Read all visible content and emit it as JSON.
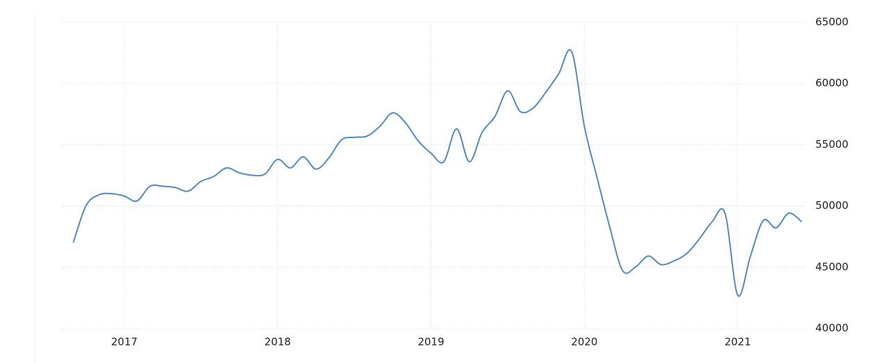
{
  "chart_data": {
    "type": "line",
    "x": [
      2016.667,
      2016.75,
      2016.833,
      2016.917,
      2017,
      2017.083,
      2017.167,
      2017.25,
      2017.333,
      2017.417,
      2017.5,
      2017.583,
      2017.667,
      2017.75,
      2017.833,
      2017.917,
      2018,
      2018.083,
      2018.167,
      2018.25,
      2018.333,
      2018.417,
      2018.5,
      2018.583,
      2018.667,
      2018.75,
      2018.833,
      2018.917,
      2019,
      2019.083,
      2019.167,
      2019.25,
      2019.333,
      2019.417,
      2019.5,
      2019.583,
      2019.667,
      2019.75,
      2019.833,
      2019.917,
      2020,
      2020.083,
      2020.167,
      2020.25,
      2020.333,
      2020.417,
      2020.5,
      2020.583,
      2020.667,
      2020.75,
      2020.833,
      2020.917,
      2021,
      2021.083,
      2021.167,
      2021.25,
      2021.333,
      2021.417
    ],
    "series": [
      {
        "color": "#4f8ac0",
        "values": [
          47000,
          50000,
          50900,
          51000,
          50800,
          50400,
          51600,
          51600,
          51500,
          51200,
          52000,
          52400,
          53100,
          52700,
          52500,
          52600,
          53800,
          53100,
          54000,
          53000,
          53900,
          55400,
          55600,
          55700,
          56500,
          57600,
          56800,
          55300,
          54300,
          53600,
          56300,
          53600,
          56000,
          57300,
          59400,
          57700,
          58000,
          59300,
          60800,
          62600,
          56500,
          52300,
          48200,
          44700,
          45000,
          45900,
          45200,
          45500,
          46100,
          47300,
          48700,
          49400,
          42700,
          45900,
          48800,
          48200,
          49400,
          48700
        ]
      }
    ],
    "xlim": [
      2016.588,
      2021.443
    ],
    "xticks": [
      2017,
      2018,
      2019,
      2020,
      2021
    ],
    "ylim": [
      40000,
      65000
    ],
    "yticks": [
      40000,
      45000,
      50000,
      55000,
      60000,
      65000
    ],
    "grid": true
  }
}
